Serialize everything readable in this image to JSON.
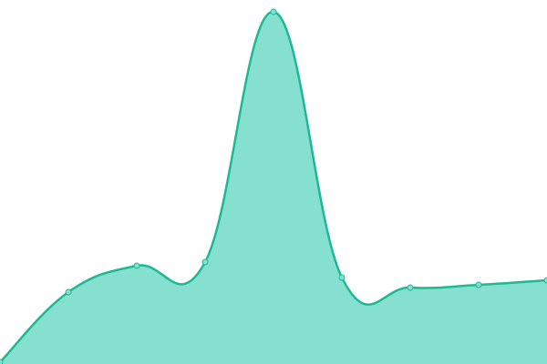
{
  "chart_data": {
    "type": "area",
    "categories": [
      null,
      null,
      null,
      null,
      null,
      null,
      null,
      null,
      null
    ],
    "values": [
      2,
      79,
      108,
      112,
      387,
      95,
      84,
      87,
      92
    ],
    "ylim": [
      0,
      400
    ],
    "color": "#1fb894",
    "fill": "#86e0cf"
  }
}
